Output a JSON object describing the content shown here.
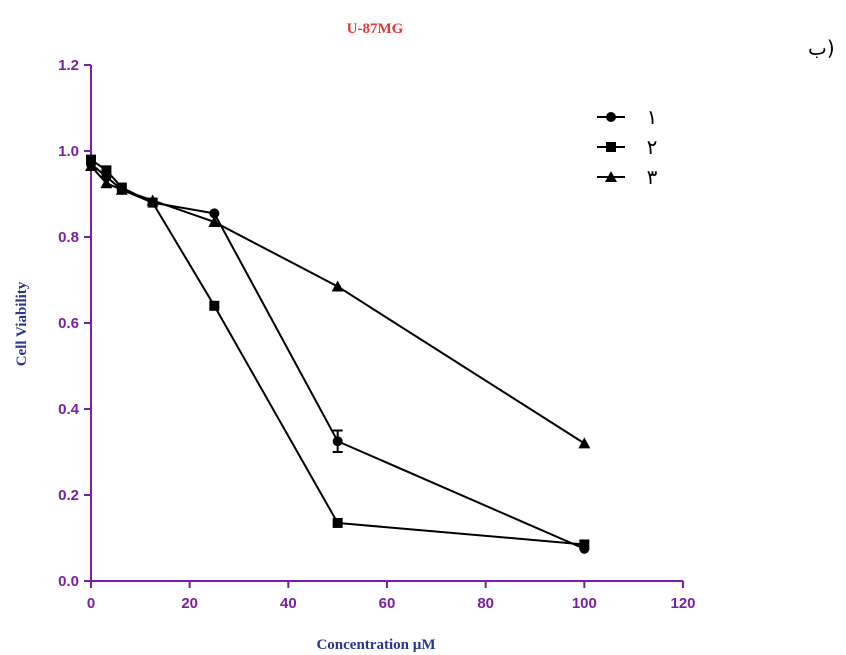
{
  "panel_label": "ب)",
  "colors": {
    "axis": "#7B1FA2",
    "title": "#E53935",
    "ylabel": "#283593",
    "series": "#000000"
  },
  "chart_data": {
    "type": "line",
    "title": "U-87MG",
    "xlabel": "Concentration µM",
    "ylabel": "Cell Viability",
    "xlim": [
      0,
      120
    ],
    "ylim": [
      0,
      1.2
    ],
    "xticks": [
      0,
      20,
      40,
      60,
      80,
      100,
      120
    ],
    "yticks": [
      0.0,
      0.2,
      0.4,
      0.6,
      0.8,
      1.0,
      1.2
    ],
    "xtick_labels": [
      "0",
      "20",
      "40",
      "60",
      "80",
      "100",
      "120"
    ],
    "ytick_labels": [
      "0.0",
      "0.2",
      "0.4",
      "0.6",
      "0.8",
      "1.0",
      "1.2"
    ],
    "legend_position": "top-right",
    "series": [
      {
        "name": "۱",
        "marker": "circle",
        "x": [
          0,
          3.125,
          6.25,
          12.5,
          25,
          50,
          100
        ],
        "y": [
          0.97,
          0.94,
          0.91,
          0.88,
          0.855,
          0.325,
          0.075
        ],
        "err": [
          0,
          0,
          0,
          0,
          0,
          0.025,
          0
        ]
      },
      {
        "name": "۲",
        "marker": "square",
        "x": [
          0,
          3.125,
          6.25,
          12.5,
          25,
          50,
          100
        ],
        "y": [
          0.98,
          0.955,
          0.915,
          0.88,
          0.64,
          0.135,
          0.085
        ],
        "err": [
          0,
          0,
          0,
          0,
          0,
          0,
          0
        ]
      },
      {
        "name": "۳",
        "marker": "triangle",
        "x": [
          0,
          3.125,
          6.25,
          12.5,
          25,
          50,
          100
        ],
        "y": [
          0.965,
          0.925,
          0.91,
          0.885,
          0.835,
          0.685,
          0.32
        ],
        "err": [
          0,
          0,
          0,
          0,
          0,
          0,
          0
        ]
      }
    ]
  }
}
